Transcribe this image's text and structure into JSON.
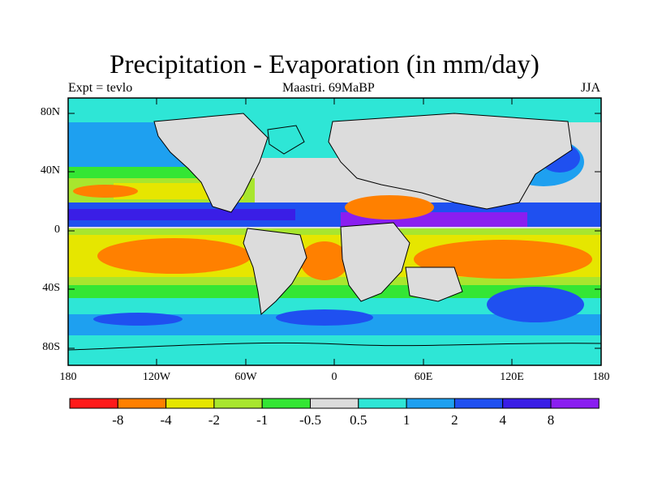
{
  "title": "Precipitation - Evaporation (in mm/day)",
  "subtitle_left": "Expt = tevlo",
  "subtitle_center": "Maastri.  69MaBP",
  "subtitle_right": "JJA",
  "lat_labels": [
    "80N",
    "40N",
    "0",
    "40S",
    "80S"
  ],
  "lon_labels": [
    "180",
    "120W",
    "60W",
    "0",
    "60E",
    "120E",
    "180"
  ],
  "colorbar": {
    "colors": [
      "#ff1a1a",
      "#ff8000",
      "#e6e600",
      "#a8e62e",
      "#34e634",
      "#dcdcdc",
      "#2ee6d6",
      "#1ea0f0",
      "#1f50f0",
      "#3a1ee6",
      "#8a1ef0"
    ],
    "labels": [
      "-8",
      "-4",
      "-2",
      "-1",
      "-0.5",
      "0.5",
      "1",
      "2",
      "4",
      "8"
    ]
  }
}
